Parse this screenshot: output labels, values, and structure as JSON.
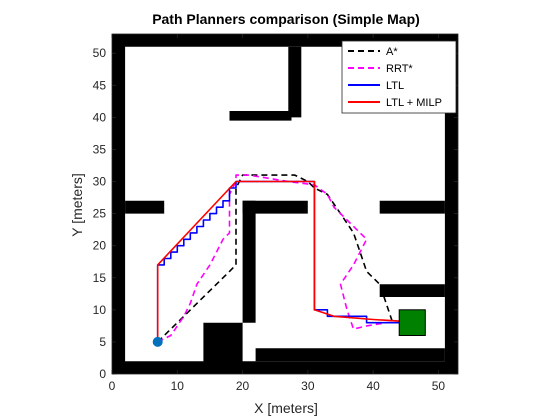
{
  "chart_data": {
    "type": "line",
    "title": "Path Planners comparison (Simple Map)",
    "xlabel": "X [meters]",
    "ylabel": "Y [meters]",
    "xlim": [
      0,
      53
    ],
    "ylim": [
      0,
      53
    ],
    "xticks": [
      "0",
      "10",
      "20",
      "30",
      "40",
      "50"
    ],
    "yticks": [
      "0",
      "5",
      "10",
      "15",
      "20",
      "25",
      "30",
      "35",
      "40",
      "45",
      "50"
    ],
    "grid": false,
    "legend_position": "top-right",
    "obstacles": [
      [
        [
          0,
          0
        ],
        [
          53,
          0
        ],
        [
          53,
          2
        ],
        [
          0,
          2
        ]
      ],
      [
        [
          0,
          51
        ],
        [
          53,
          51
        ],
        [
          53,
          53
        ],
        [
          0,
          53
        ]
      ],
      [
        [
          0,
          0
        ],
        [
          2,
          0
        ],
        [
          2,
          53
        ],
        [
          0,
          53
        ]
      ],
      [
        [
          51,
          0
        ],
        [
          53,
          0
        ],
        [
          53,
          53
        ],
        [
          51,
          53
        ]
      ],
      [
        [
          27,
          40
        ],
        [
          29,
          40
        ],
        [
          29,
          51
        ],
        [
          27,
          51
        ]
      ],
      [
        [
          18,
          39.5
        ],
        [
          27.5,
          39.5
        ],
        [
          27.5,
          41
        ],
        [
          18,
          41
        ]
      ],
      [
        [
          2,
          25
        ],
        [
          8,
          25
        ],
        [
          8,
          27
        ],
        [
          2,
          27
        ]
      ],
      [
        [
          20,
          25
        ],
        [
          30,
          25
        ],
        [
          30,
          27
        ],
        [
          20,
          27
        ]
      ],
      [
        [
          20,
          8
        ],
        [
          22,
          8
        ],
        [
          22,
          27
        ],
        [
          20,
          27
        ]
      ],
      [
        [
          14,
          0
        ],
        [
          20,
          0
        ],
        [
          20,
          8
        ],
        [
          14,
          8
        ]
      ],
      [
        [
          22,
          2
        ],
        [
          51,
          2
        ],
        [
          51,
          4
        ],
        [
          22,
          4
        ]
      ],
      [
        [
          41,
          25
        ],
        [
          51,
          25
        ],
        [
          51,
          27
        ],
        [
          41,
          27
        ]
      ],
      [
        [
          41,
          12
        ],
        [
          51,
          12
        ],
        [
          51,
          14
        ],
        [
          41,
          14
        ]
      ]
    ],
    "start": {
      "x": 7,
      "y": 5
    },
    "goal": {
      "x": 46,
      "y": 8
    },
    "colors": {
      "astar": "#000000",
      "rrt": "#ff00ff",
      "ltl": "#0000ff",
      "ltl_milp": "#ff0000",
      "goal": "#008000",
      "start": "#0072bd"
    },
    "series": [
      {
        "name": "A*",
        "style": "dashed",
        "points": [
          [
            7,
            5
          ],
          [
            8,
            6
          ],
          [
            10,
            8
          ],
          [
            13,
            11
          ],
          [
            16,
            14
          ],
          [
            18,
            16
          ],
          [
            19,
            17
          ],
          [
            19,
            22
          ],
          [
            19,
            27
          ],
          [
            19,
            29
          ],
          [
            20,
            31
          ],
          [
            23,
            31
          ],
          [
            28,
            31
          ],
          [
            30,
            30
          ],
          [
            31,
            29
          ],
          [
            33,
            28
          ],
          [
            35,
            25
          ],
          [
            37,
            22
          ],
          [
            38,
            19
          ],
          [
            39,
            16
          ],
          [
            41,
            14
          ],
          [
            42,
            11
          ],
          [
            43,
            8
          ],
          [
            46,
            8
          ]
        ]
      },
      {
        "name": "RRT*",
        "style": "dashed",
        "points": [
          [
            7,
            5
          ],
          [
            9,
            6
          ],
          [
            11,
            9
          ],
          [
            12,
            11
          ],
          [
            13,
            14
          ],
          [
            15,
            17
          ],
          [
            16,
            19
          ],
          [
            17,
            21
          ],
          [
            18,
            22
          ],
          [
            18,
            25
          ],
          [
            18,
            28
          ],
          [
            19,
            30
          ],
          [
            19,
            31
          ],
          [
            21,
            31
          ],
          [
            24,
            30.5
          ],
          [
            27,
            30
          ],
          [
            31,
            29.5
          ],
          [
            33,
            28
          ],
          [
            34,
            26
          ],
          [
            36,
            24
          ],
          [
            39,
            21
          ],
          [
            37,
            17
          ],
          [
            35,
            14
          ],
          [
            36,
            10
          ],
          [
            37,
            7
          ],
          [
            39,
            7.5
          ],
          [
            42,
            8
          ],
          [
            46,
            8
          ]
        ]
      },
      {
        "name": "LTL",
        "style": "solid",
        "points": [
          [
            7,
            5
          ],
          [
            7,
            17
          ],
          [
            8,
            17
          ],
          [
            8,
            18
          ],
          [
            9,
            18
          ],
          [
            9,
            19
          ],
          [
            10,
            19
          ],
          [
            10,
            20
          ],
          [
            11,
            20
          ],
          [
            11,
            21
          ],
          [
            12,
            21
          ],
          [
            12,
            22
          ],
          [
            13,
            22
          ],
          [
            13,
            23
          ],
          [
            14,
            23
          ],
          [
            14,
            24
          ],
          [
            15,
            24
          ],
          [
            15,
            25
          ],
          [
            16,
            25
          ],
          [
            16,
            26
          ],
          [
            17,
            26
          ],
          [
            17,
            27
          ],
          [
            18,
            27
          ],
          [
            18,
            29
          ],
          [
            19,
            29
          ],
          [
            19,
            30
          ],
          [
            31,
            30
          ],
          [
            31,
            10
          ],
          [
            33,
            10
          ],
          [
            33,
            9
          ],
          [
            39,
            9
          ],
          [
            39,
            8
          ],
          [
            46,
            8
          ],
          [
            46,
            9
          ]
        ]
      },
      {
        "name": "LTL + MILP",
        "style": "solid",
        "points": [
          [
            7,
            5
          ],
          [
            7,
            17
          ],
          [
            19,
            30
          ],
          [
            31,
            30
          ],
          [
            31,
            10
          ],
          [
            34,
            9
          ],
          [
            40,
            8.5
          ],
          [
            48,
            8
          ]
        ]
      }
    ]
  }
}
